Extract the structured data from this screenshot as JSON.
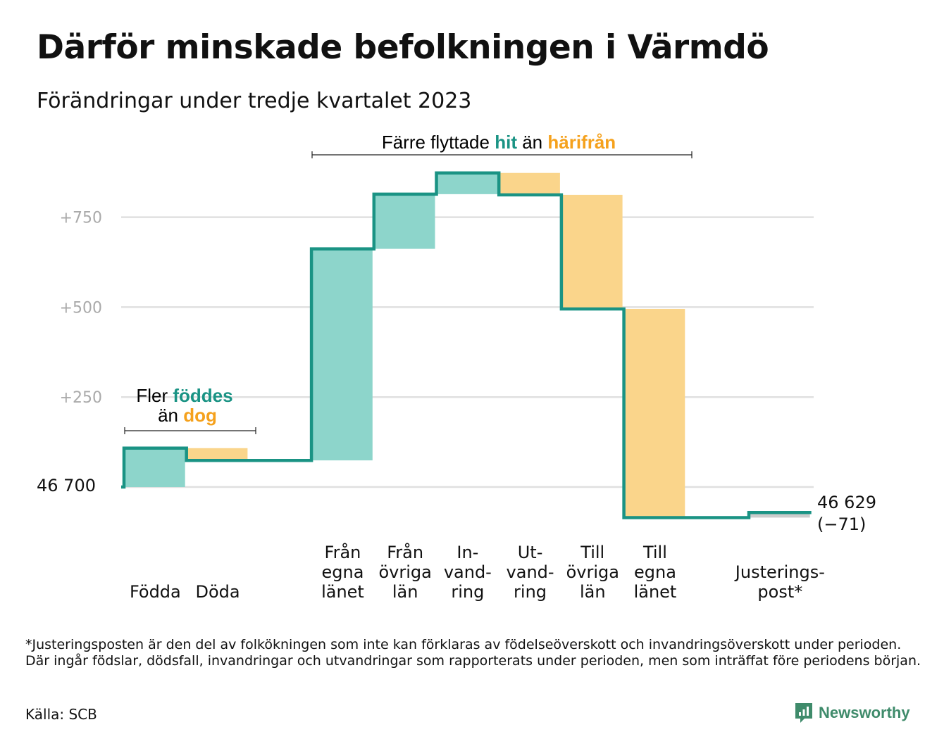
{
  "title": "Därför minskade befolkningen i Värmdö",
  "subtitle": "Förändringar under tredje kvartalet 2023",
  "footnote": "*Justeringsposten är den del av folkökningen som inte kan förklaras av födelseöverskott och invandringsöverskott under perioden. Där ingår födslar, dödsfall, invandringar och utvandringar som rapporterats under perioden, men som inträffat före periodens början.",
  "source": "Källa: SCB",
  "brand": "Newsworthy",
  "colors": {
    "line": "#1a9384",
    "increase": "#8dd5cb",
    "decrease": "#fad58b",
    "adjustment": "#cccccc",
    "grid": "#e0e0e0",
    "tick": "#aaaaaa",
    "accent_hit": "#1a9384",
    "accent_harifran": "#f5a11c"
  },
  "annotations": {
    "births": {
      "line1_pre": "Fler ",
      "line1_em": "föddes",
      "line2_pre": "än ",
      "line2_em": "dog"
    },
    "migration": {
      "pre": "Färre flyttade ",
      "em1": "hit",
      "mid": " än ",
      "em2": "härifrån"
    }
  },
  "chart_data": {
    "type": "waterfall",
    "title": "Därför minskade befolkningen i Värmdö",
    "subtitle": "Förändringar under tredje kvartalet 2023",
    "start_value": 46700,
    "start_label": "46  700",
    "end_value": 46629,
    "end_label": "46 629",
    "end_change_label": "(−71)",
    "y_ticks": [
      {
        "value": 250,
        "label": "+250"
      },
      {
        "value": 500,
        "label": "+500"
      },
      {
        "value": 750,
        "label": "+750"
      }
    ],
    "ylim": [
      -100,
      900
    ],
    "grid": true,
    "steps": [
      {
        "label": [
          "Födda"
        ],
        "change": 108,
        "kind": "increase"
      },
      {
        "label": [
          "Döda"
        ],
        "change": -34,
        "kind": "decrease"
      },
      {
        "label": [],
        "change": 0,
        "kind": "spacer"
      },
      {
        "label": [
          "Från",
          "egna",
          "länet"
        ],
        "change": 588,
        "kind": "increase"
      },
      {
        "label": [
          "Från",
          "övriga",
          "län"
        ],
        "change": 152,
        "kind": "increase"
      },
      {
        "label": [
          "In-",
          "vand-",
          "ring"
        ],
        "change": 59,
        "kind": "increase"
      },
      {
        "label": [
          "Ut-",
          "vand-",
          "ring"
        ],
        "change": -61,
        "kind": "decrease"
      },
      {
        "label": [
          "Till",
          "övriga",
          "län"
        ],
        "change": -317,
        "kind": "decrease"
      },
      {
        "label": [
          "Till",
          "egna",
          "länet"
        ],
        "change": -580,
        "kind": "decrease"
      },
      {
        "label": [],
        "change": 0,
        "kind": "spacer"
      },
      {
        "label": [
          "Justerings-",
          "post*"
        ],
        "change": 14,
        "kind": "adjustment"
      }
    ]
  }
}
